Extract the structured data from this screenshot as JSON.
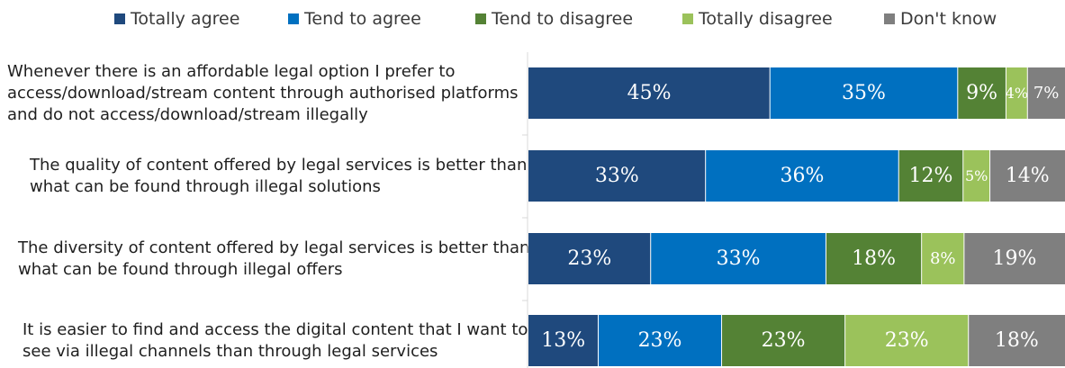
{
  "chart_data": {
    "type": "bar",
    "orientation": "horizontal",
    "stacked": true,
    "legend_position": "top",
    "grid": false,
    "xlim": [
      0,
      100
    ],
    "legend": [
      {
        "name": "Totally agree",
        "color": "#1f497d"
      },
      {
        "name": "Tend to agree",
        "color": "#0070c0"
      },
      {
        "name": "Tend to disagree",
        "color": "#548235"
      },
      {
        "name": "Totally disagree",
        "color": "#9bc25b"
      },
      {
        "name": "Don't know",
        "color": "#7f7f7f"
      }
    ],
    "categories": [
      [
        "Whenever there is an affordable legal option I prefer to",
        "access/download/stream content through authorised platforms",
        "and do not access/download/stream illegally"
      ],
      [
        "The quality of content offered by legal services is better than",
        "what can be found through illegal solutions"
      ],
      [
        "The diversity of content offered by legal services is better than",
        "what can be found through illegal offers"
      ],
      [
        "It is easier to find and access the digital content that I want to",
        "see via illegal channels than through legal services"
      ]
    ],
    "series": [
      {
        "name": "Totally agree",
        "values": [
          45,
          33,
          23,
          13
        ],
        "labels": [
          "45%",
          "33%",
          "23%",
          "13%"
        ]
      },
      {
        "name": "Tend to agree",
        "values": [
          35,
          36,
          33,
          23
        ],
        "labels": [
          "35%",
          "36%",
          "33%",
          "23%"
        ]
      },
      {
        "name": "Tend to disagree",
        "values": [
          9,
          12,
          18,
          23
        ],
        "labels": [
          "9%",
          "12%",
          "18%",
          "23%"
        ]
      },
      {
        "name": "Totally disagree",
        "values": [
          4,
          5,
          8,
          23
        ],
        "labels": [
          "4%",
          "5%",
          "8%",
          "23%"
        ]
      },
      {
        "name": "Don't know",
        "values": [
          7,
          14,
          19,
          18
        ],
        "labels": [
          "7%",
          "14%",
          "19%",
          "18%"
        ]
      }
    ]
  }
}
